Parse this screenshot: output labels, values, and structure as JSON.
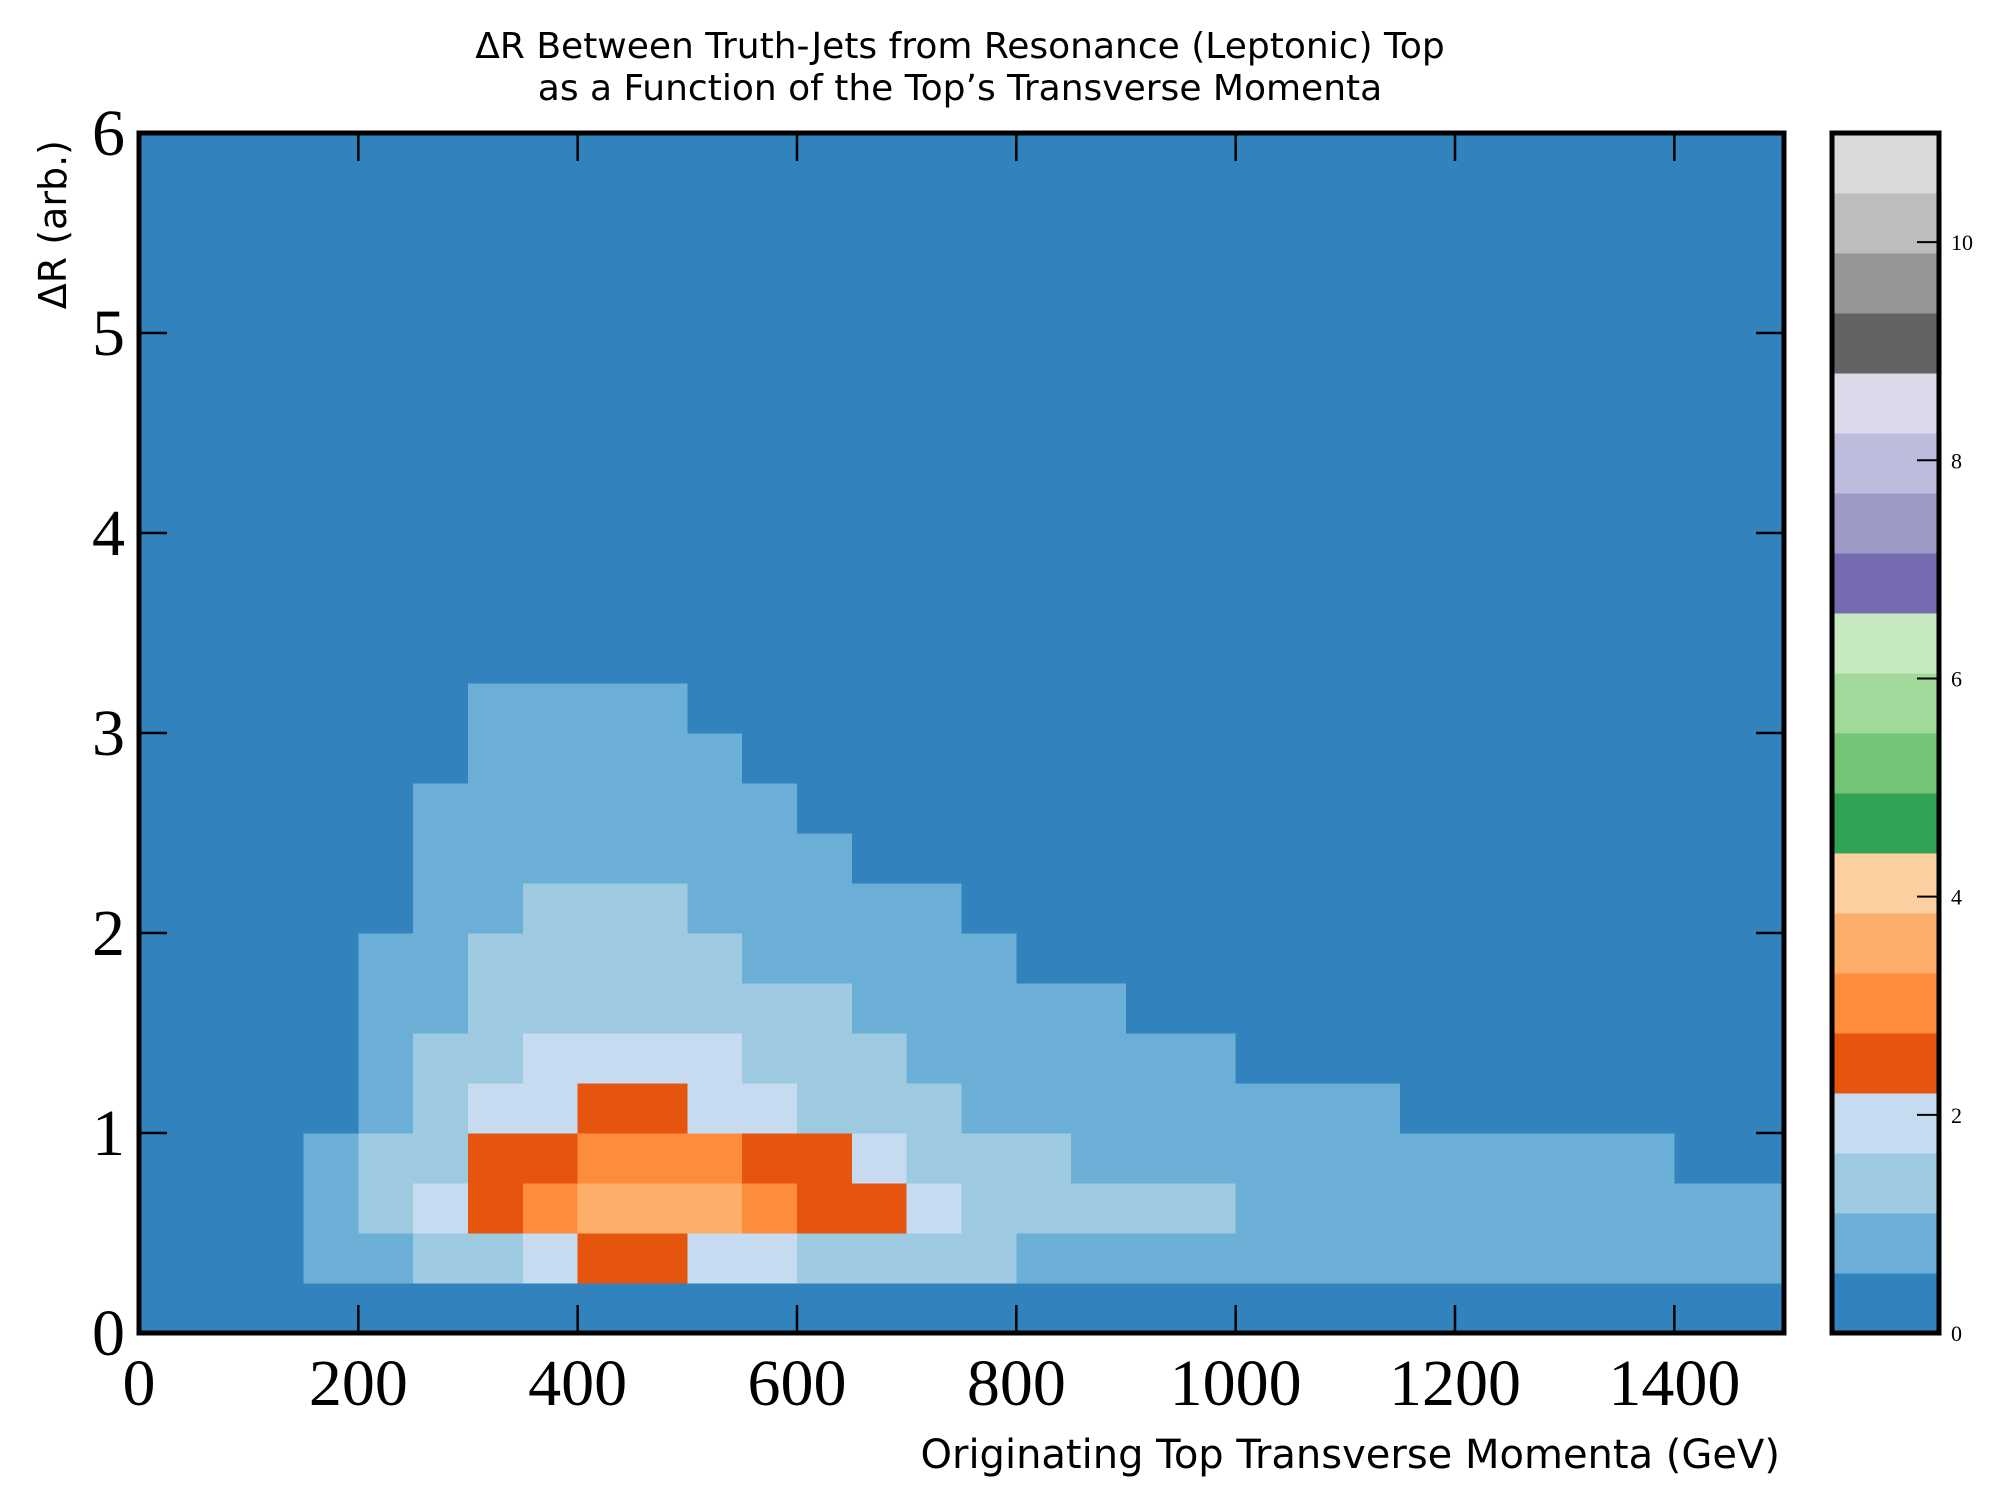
{
  "chart_data": {
    "type": "heatmap",
    "title": [
      "ΔR Between Truth-Jets from Resonance (Leptonic) Top",
      "as a Function of the Top’s Transverse Momenta"
    ],
    "x_label": "Originating Top Transverse Momenta (GeV)",
    "y_label": "ΔR (arb.)",
    "xlim": [
      0,
      1500
    ],
    "ylim": [
      0,
      6
    ],
    "xticks": [
      0,
      200,
      400,
      600,
      800,
      1000,
      1200,
      1400
    ],
    "yticks": [
      0,
      1,
      2,
      3,
      4,
      5,
      6
    ],
    "x_bins": [
      0,
      50,
      100,
      150,
      200,
      250,
      300,
      350,
      400,
      450,
      500,
      550,
      600,
      650,
      700,
      750,
      800,
      850,
      900,
      950,
      1000,
      1050,
      1100,
      1150,
      1200,
      1250,
      1300,
      1350,
      1400,
      1450,
      1500
    ],
    "y_bins": [
      0,
      0.25,
      0.5,
      0.75,
      1,
      1.25,
      1.5,
      1.75,
      2,
      2.25,
      2.5,
      2.75,
      3,
      3.25,
      3.5,
      3.75,
      4
    ],
    "values": [
      [
        0,
        0,
        0,
        0,
        0,
        0,
        0,
        0,
        0,
        0,
        0,
        0,
        0,
        0,
        0,
        0,
        0,
        0,
        0,
        0,
        0,
        0,
        0,
        0,
        0,
        0,
        0,
        0,
        0,
        0
      ],
      [
        0,
        0,
        0,
        0.6,
        1,
        1.2,
        1.6,
        2,
        2.2,
        2.2,
        2,
        1.8,
        1.6,
        1.4,
        1.2,
        1.1,
        1,
        1,
        0.9,
        0.9,
        0.8,
        0.8,
        0.8,
        0.7,
        0.7,
        0.7,
        0.6,
        0.6,
        0.6,
        0.6
      ],
      [
        0,
        0,
        0,
        0.8,
        1.4,
        1.8,
        2.6,
        3.2,
        3.6,
        3.6,
        3.4,
        3,
        2.6,
        2.2,
        1.9,
        1.6,
        1.4,
        1.3,
        1.2,
        1.1,
        1,
        1,
        0.9,
        0.9,
        0.8,
        0.8,
        0.8,
        0.7,
        0.7,
        0.7
      ],
      [
        0,
        0,
        0,
        0.6,
        1.1,
        1.5,
        2.2,
        2.7,
        3,
        3,
        2.8,
        2.5,
        2.2,
        1.8,
        1.5,
        1.3,
        1.1,
        1,
        0.9,
        0.8,
        0.8,
        0.7,
        0.7,
        0.7,
        0.6,
        0.6,
        0.6,
        0.6,
        0.5,
        0.5
      ],
      [
        0,
        0,
        0,
        0.5,
        0.9,
        1.3,
        1.8,
        2.1,
        2.3,
        2.3,
        2.1,
        1.8,
        1.6,
        1.4,
        1.2,
        1,
        0.9,
        0.8,
        0.7,
        0.7,
        0.6,
        0.6,
        0.6,
        0.5,
        0.5,
        0.5,
        0.5,
        0.4,
        0.4,
        0.4
      ],
      [
        0,
        0,
        0,
        0.4,
        0.8,
        1.1,
        1.5,
        1.7,
        1.8,
        1.8,
        1.7,
        1.5,
        1.3,
        1.1,
        1,
        0.8,
        0.7,
        0.7,
        0.6,
        0.6,
        0.5,
        0.5,
        0.4,
        0.4,
        0.4,
        0.4,
        0.3,
        0.3,
        0.3,
        0.3
      ],
      [
        0,
        0,
        0,
        0.3,
        0.7,
        1,
        1.3,
        1.4,
        1.5,
        1.5,
        1.4,
        1.2,
        1.1,
        0.9,
        0.8,
        0.7,
        0.6,
        0.6,
        0.5,
        0.5,
        0.4,
        0.4,
        0.3,
        0.3,
        0.3,
        0.3,
        0.2,
        0.2,
        0.2,
        0.2
      ],
      [
        0,
        0,
        0,
        0.2,
        0.6,
        0.9,
        1.1,
        1.2,
        1.3,
        1.3,
        1.2,
        1,
        0.9,
        0.8,
        0.7,
        0.6,
        0.5,
        0.5,
        0.4,
        0.4,
        0.3,
        0.3,
        0.3,
        0.2,
        0.2,
        0.2,
        0.2,
        0.1,
        0.1,
        0.1
      ],
      [
        0,
        0,
        0,
        0.1,
        0.5,
        0.8,
        1,
        1.1,
        1.1,
        1.1,
        1,
        0.9,
        0.8,
        0.7,
        0.6,
        0.5,
        0.4,
        0.4,
        0.3,
        0.3,
        0.3,
        0.2,
        0.2,
        0.2,
        0.1,
        0.1,
        0.1,
        0.1,
        0.1,
        0.1
      ],
      [
        0,
        0,
        0,
        0.1,
        0.4,
        0.7,
        0.9,
        1,
        1,
        0.9,
        0.8,
        0.7,
        0.6,
        0.5,
        0.5,
        0.4,
        0.3,
        0.3,
        0.3,
        0.2,
        0.2,
        0.2,
        0.1,
        0.1,
        0.1,
        0.1,
        0,
        0,
        0,
        0
      ],
      [
        0,
        0,
        0,
        0,
        0.3,
        0.6,
        0.8,
        0.9,
        0.9,
        0.8,
        0.7,
        0.6,
        0.5,
        0.4,
        0.4,
        0.3,
        0.3,
        0.2,
        0.2,
        0.2,
        0.1,
        0.1,
        0.1,
        0,
        0,
        0,
        0,
        0,
        0,
        0
      ],
      [
        0,
        0,
        0,
        0,
        0.3,
        0.5,
        0.7,
        0.8,
        0.8,
        0.7,
        0.6,
        0.5,
        0.4,
        0.4,
        0.3,
        0.3,
        0.2,
        0.2,
        0.2,
        0.1,
        0.1,
        0.1,
        0,
        0,
        0,
        0,
        0,
        0,
        0,
        0
      ],
      [
        0,
        0,
        0,
        0,
        0.2,
        0.4,
        0.6,
        0.7,
        0.7,
        0.6,
        0.5,
        0.4,
        0.3,
        0.3,
        0.2,
        0.2,
        0.1,
        0.1,
        0.1,
        0,
        0,
        0,
        0,
        0,
        0,
        0,
        0,
        0,
        0,
        0
      ],
      [
        0,
        0,
        0,
        0,
        0.1,
        0.3,
        0.4,
        0.5,
        0.5,
        0.4,
        0.3,
        0.3,
        0.2,
        0.2,
        0.1,
        0.1,
        0,
        0,
        0,
        0,
        0,
        0,
        0,
        0,
        0,
        0,
        0,
        0,
        0,
        0
      ],
      [
        0,
        0,
        0,
        0,
        0,
        0.1,
        0.2,
        0.3,
        0.3,
        0.2,
        0.2,
        0.1,
        0.1,
        0,
        0,
        0,
        0,
        0,
        0,
        0,
        0,
        0,
        0,
        0,
        0,
        0,
        0,
        0,
        0,
        0
      ],
      [
        0,
        0,
        0,
        0,
        0,
        0,
        0,
        0,
        0,
        0,
        0,
        0,
        0,
        0,
        0,
        0,
        0,
        0,
        0,
        0,
        0,
        0,
        0,
        0,
        0,
        0,
        0,
        0,
        0,
        0
      ]
    ],
    "colormap": [
      "#3182bd",
      "#6baed6",
      "#9ecae1",
      "#c6dbef",
      "#e6550d",
      "#fd8d3c",
      "#fdae6b",
      "#fdd0a2",
      "#31a354",
      "#74c476",
      "#a1d99b",
      "#c7e9c0",
      "#756bb1",
      "#9e9ac8",
      "#bcbddc",
      "#dadaeb",
      "#636363",
      "#969696",
      "#bdbdbd",
      "#d9d9d9"
    ],
    "clim": [
      0,
      11
    ],
    "cticks": [
      0,
      2,
      4,
      6,
      8,
      10
    ]
  }
}
